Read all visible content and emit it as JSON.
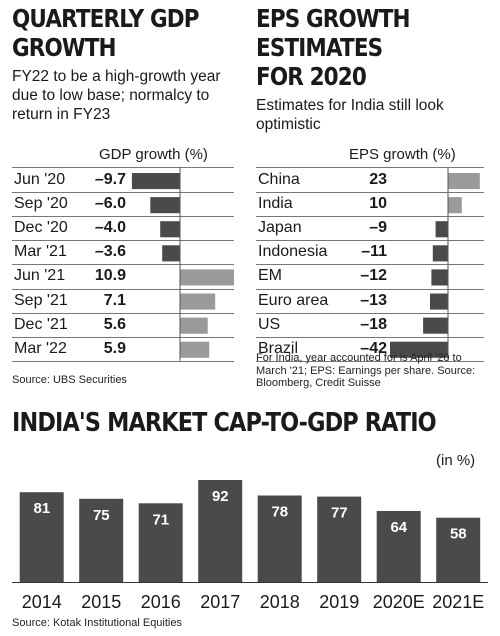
{
  "chart_data": [
    {
      "type": "bar",
      "title": "QUARTERLY GDP GROWTH",
      "subtitle": "FY22 to be a high-growth year due to low base; normalcy to return in FY23",
      "column_header": "GDP growth (%)",
      "categories": [
        "Jun '20",
        "Sep '20",
        "Dec '20",
        "Mar '21",
        "Jun '21",
        "Sep '21",
        "Dec '21",
        "Mar '22"
      ],
      "values": [
        -9.7,
        -6.0,
        -4.0,
        -3.6,
        10.9,
        7.1,
        5.6,
        5.9
      ],
      "value_labels": [
        "-9.7",
        "-6.0",
        "-4.0",
        "-3.6",
        "10.9",
        "7.1",
        "5.6",
        "5.9"
      ],
      "source": "Source: UBS Securities"
    },
    {
      "type": "bar",
      "title": "EPS GROWTH ESTIMATES FOR 2020",
      "subtitle": "Estimates for India still look optimistic",
      "column_header": "EPS growth (%)",
      "categories": [
        "China",
        "India",
        "Japan",
        "Indonesia",
        "EM",
        "Euro area",
        "US",
        "Brazil"
      ],
      "values": [
        23,
        10,
        -9,
        -11,
        -12,
        -13,
        -18,
        -42
      ],
      "value_labels": [
        "23",
        "10",
        "-9",
        "-11",
        "-12",
        "-13",
        "-18",
        "-42"
      ],
      "note": "For India, year accounted for is April '20 to March '21; EPS: Earnings per share.",
      "source": "Source: Bloomberg, Credit Suisse"
    },
    {
      "type": "bar",
      "title": "INDIA'S MARKET CAP-TO-GDP RATIO",
      "unit": "(in %)",
      "categories": [
        "2014",
        "2015",
        "2016",
        "2017",
        "2018",
        "2019",
        "2020E",
        "2021E"
      ],
      "values": [
        81,
        75,
        71,
        92,
        78,
        77,
        64,
        58
      ],
      "value_labels": [
        "81",
        "75",
        "71",
        "92",
        "78",
        "77",
        "64",
        "58"
      ],
      "source": "Source: Kotak Institutional Equities"
    }
  ],
  "colors": {
    "dark_bar": "#4a4a4a",
    "light_bar": "#9a9a9a",
    "rule": "#777777"
  }
}
